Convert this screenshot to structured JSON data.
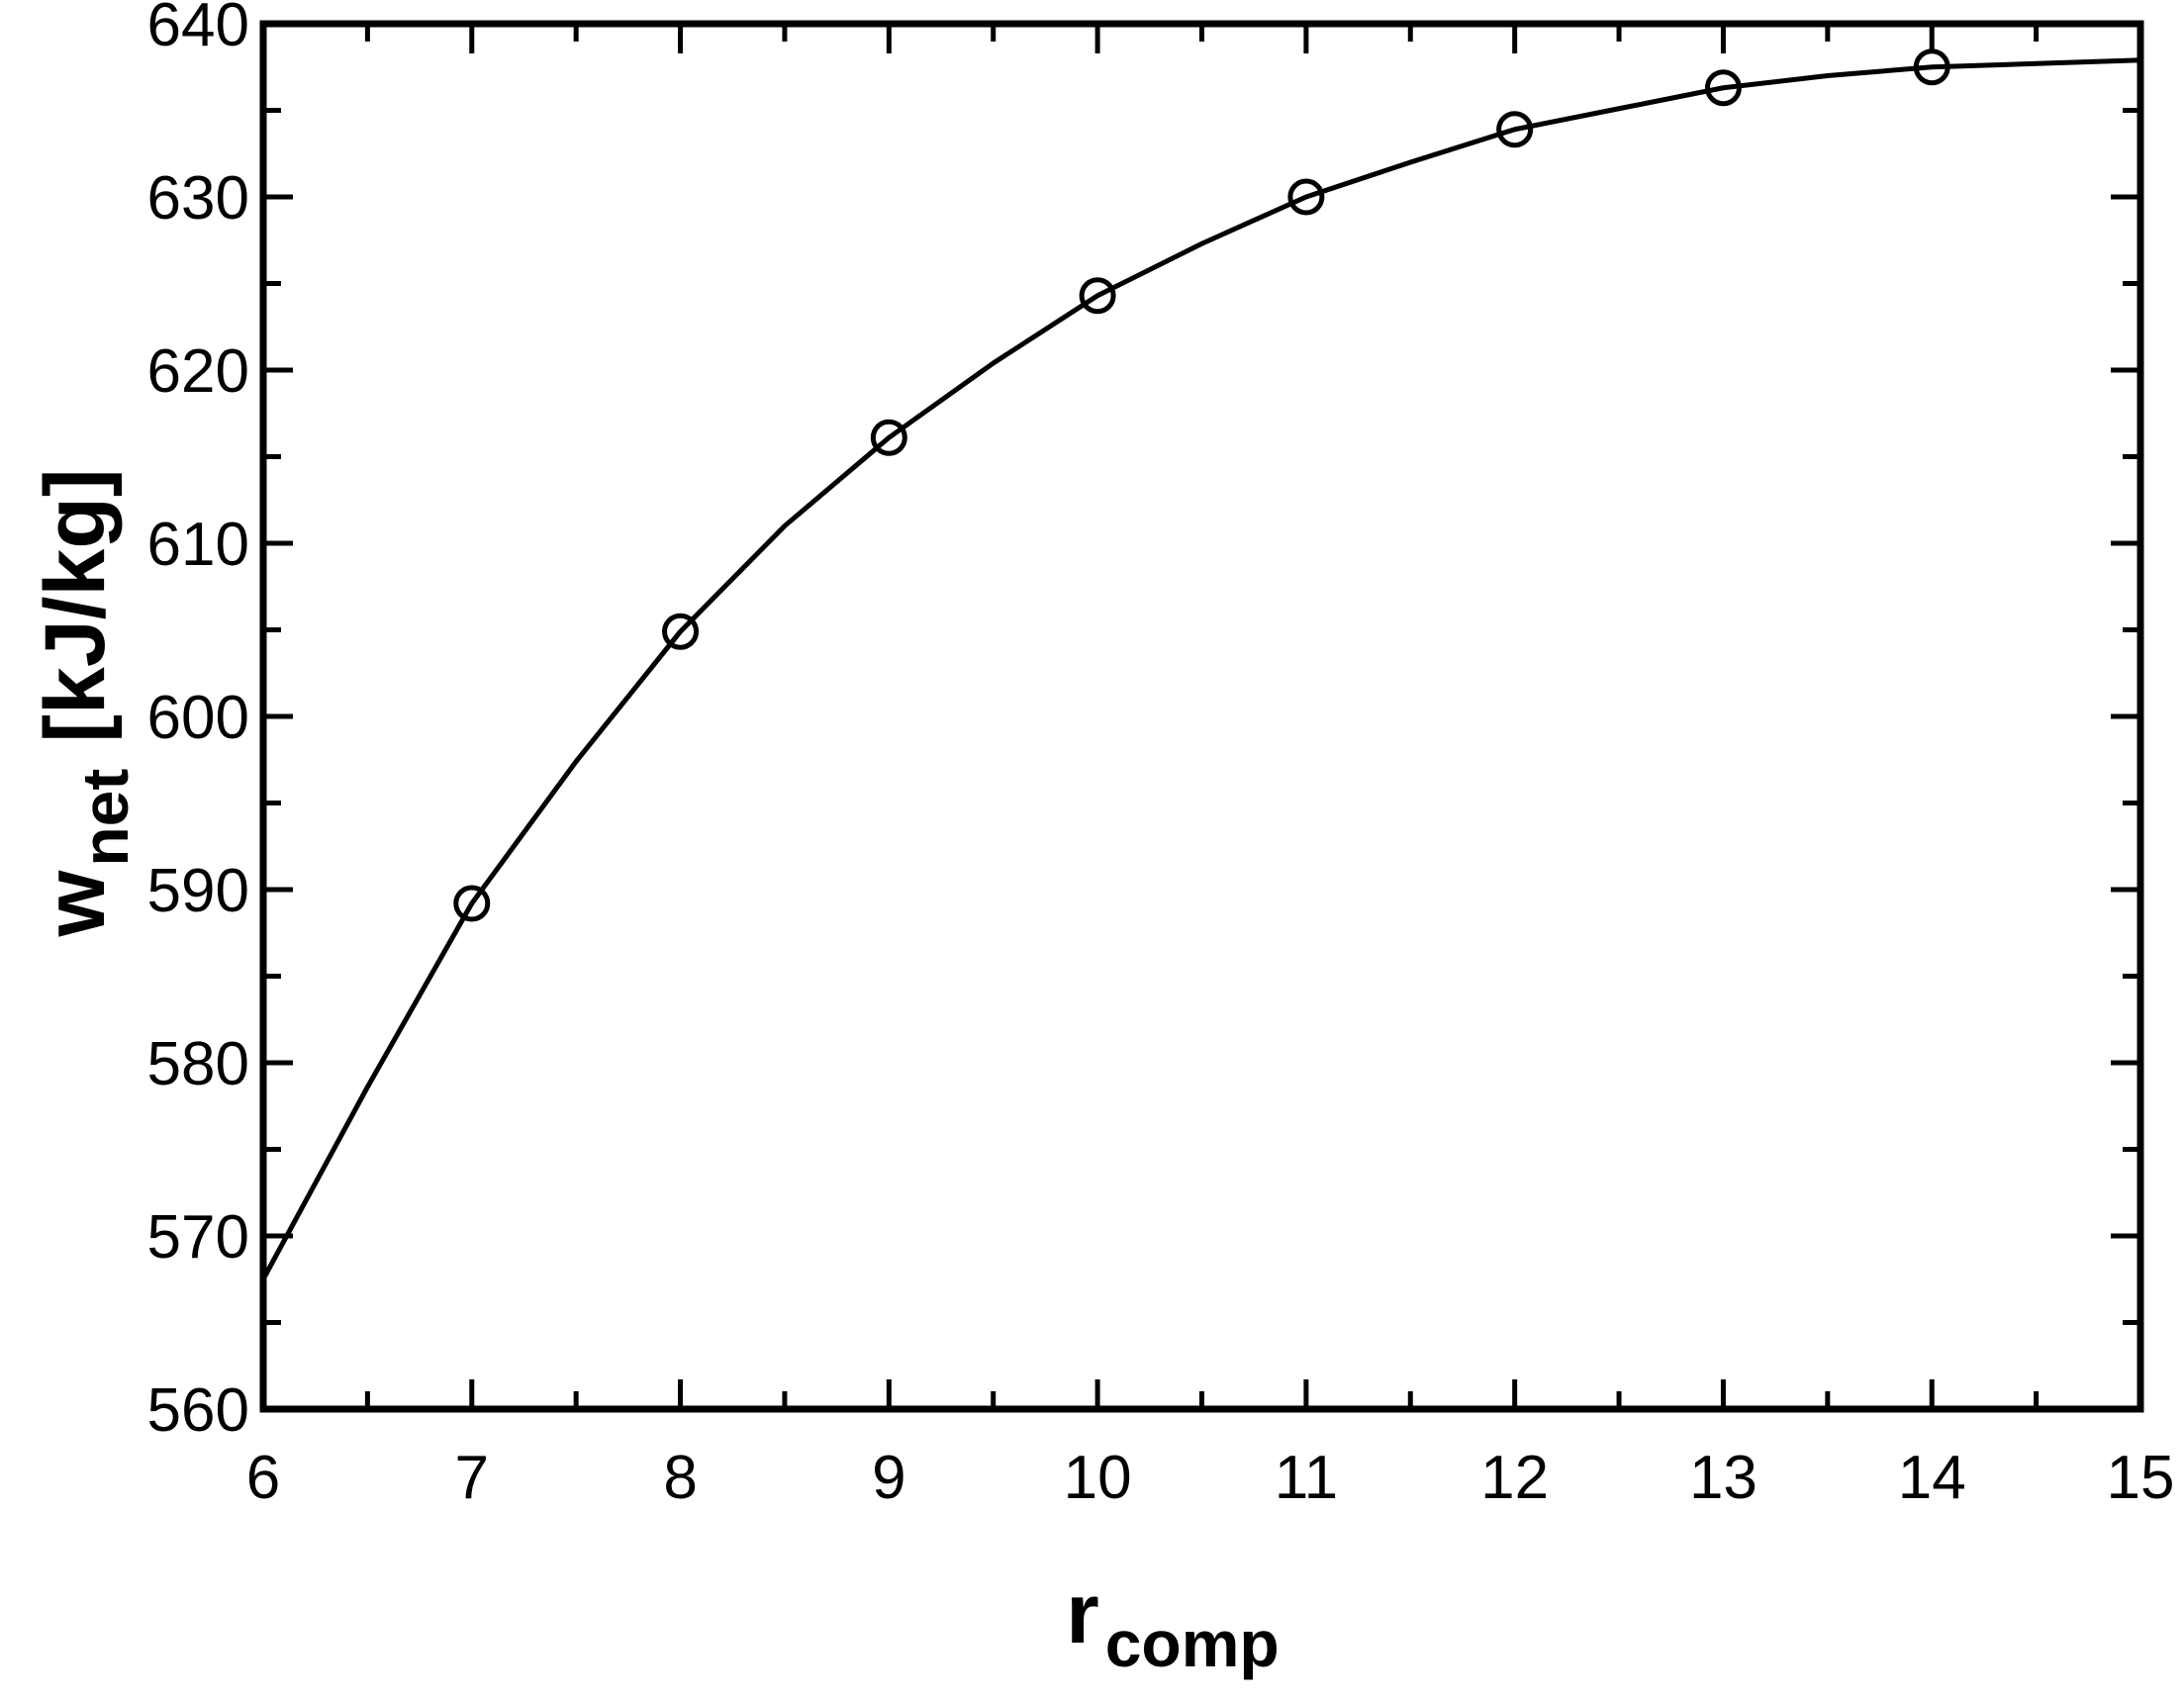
{
  "chart_data": {
    "type": "line",
    "title": "",
    "xlabel": {
      "main": "r",
      "sub": "comp"
    },
    "ylabel": {
      "main": "w",
      "sub": "net",
      "unit": "[kJ/kg]"
    },
    "xlim": [
      6,
      15
    ],
    "ylim": [
      560,
      640
    ],
    "x_ticks": [
      6,
      7,
      8,
      9,
      10,
      11,
      12,
      13,
      14,
      15
    ],
    "y_ticks": [
      560,
      570,
      580,
      590,
      600,
      610,
      620,
      630,
      640
    ],
    "grid": false,
    "legend": "none",
    "series": [
      {
        "style": "line",
        "color": "#000000",
        "x": [
          6.0,
          6.5,
          7.0,
          7.5,
          8.0,
          8.5,
          9.0,
          9.5,
          10.0,
          10.5,
          11.0,
          11.5,
          12.0,
          12.5,
          13.0,
          13.5,
          14.0,
          14.5,
          15.0
        ],
        "y": [
          567.5,
          578.6,
          589.2,
          597.4,
          604.9,
          611.0,
          616.1,
          620.4,
          624.3,
          627.3,
          630.0,
          632.0,
          633.9,
          635.1,
          636.3,
          637.0,
          637.5,
          637.7,
          637.9
        ]
      },
      {
        "style": "markers",
        "marker": "open-circle",
        "color": "#000000",
        "x": [
          7,
          8,
          9,
          10,
          11,
          12,
          13,
          14
        ],
        "y": [
          589.2,
          604.9,
          616.1,
          624.3,
          630.0,
          633.9,
          636.3,
          637.5
        ]
      }
    ]
  }
}
